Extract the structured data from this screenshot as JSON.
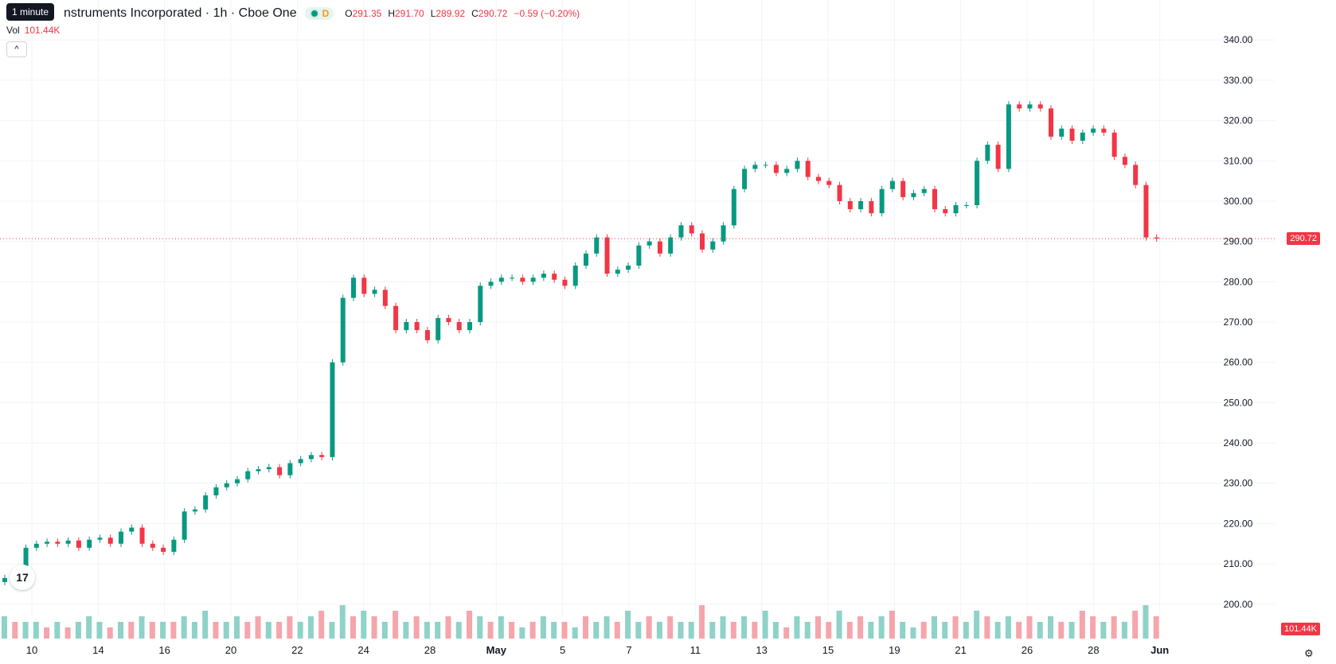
{
  "tooltip": "1 minute",
  "header": {
    "title": "nstruments Incorporated · 1h · Cboe One",
    "delay_flag": "D",
    "ohlc": {
      "o_label": "O",
      "o": "291.35",
      "h_label": "H",
      "h": "291.70",
      "l_label": "L",
      "l": "289.92",
      "c_label": "C",
      "c": "290.72",
      "change": "−0.59 (−0.20%)"
    }
  },
  "volume": {
    "label": "Vol",
    "value": "101.44K"
  },
  "price_tag": "290.72",
  "volume_tag": "101.44K",
  "logo": "17",
  "colors": {
    "up": "#089981",
    "down": "#f23645",
    "vol_up": "#8ed2c8",
    "vol_down": "#f5a5ab",
    "grid": "#f0f3fa"
  },
  "chart_data": {
    "type": "candlestick",
    "x_ticks": [
      "10",
      "14",
      "16",
      "20",
      "22",
      "24",
      "28",
      "May",
      "5",
      "7",
      "11",
      "13",
      "15",
      "19",
      "21",
      "26",
      "28",
      "Jun"
    ],
    "y_ticks": [
      "340.00",
      "330.00",
      "320.00",
      "310.00",
      "300.00",
      "290.00",
      "280.00",
      "270.00",
      "260.00",
      "250.00",
      "240.00",
      "230.00",
      "220.00",
      "210.00",
      "200.00"
    ],
    "ylim": [
      197,
      343
    ],
    "last_price": 290.72,
    "close_path": [
      206.5,
      207.5,
      214,
      215,
      215.5,
      215,
      215.8,
      214,
      216,
      216.5,
      215,
      218,
      219,
      215,
      214,
      213,
      216,
      223,
      223.5,
      227,
      229,
      230,
      231,
      233,
      233.5,
      234,
      232,
      235,
      236,
      237,
      236.5,
      260,
      276,
      281,
      277,
      278,
      274,
      268,
      270,
      268,
      265.5,
      271,
      270,
      268,
      270,
      279,
      280,
      281,
      281,
      280,
      281,
      282,
      280.5,
      279,
      284,
      287,
      291,
      282,
      283,
      284,
      289,
      290,
      287,
      291,
      294,
      292,
      288,
      290,
      294,
      303,
      308,
      309,
      309,
      307,
      308,
      310,
      306,
      305,
      304,
      300,
      298,
      300,
      297,
      303,
      305,
      301,
      302,
      303,
      298,
      297,
      299,
      299,
      310,
      314,
      308,
      324,
      323,
      324,
      323,
      316,
      318,
      315,
      317,
      318,
      317,
      311,
      309,
      304,
      291,
      290.72
    ],
    "volume_series": [
      [
        4,
        1
      ],
      [
        3,
        0
      ],
      [
        3,
        1
      ],
      [
        3,
        1
      ],
      [
        2,
        0
      ],
      [
        3,
        1
      ],
      [
        2,
        0
      ],
      [
        3,
        1
      ],
      [
        4,
        1
      ],
      [
        3,
        1
      ],
      [
        2,
        0
      ],
      [
        3,
        1
      ],
      [
        3,
        0
      ],
      [
        4,
        1
      ],
      [
        3,
        0
      ],
      [
        3,
        1
      ],
      [
        3,
        0
      ],
      [
        4,
        1
      ],
      [
        3,
        1
      ],
      [
        5,
        1
      ],
      [
        3,
        0
      ],
      [
        3,
        1
      ],
      [
        4,
        1
      ],
      [
        3,
        0
      ],
      [
        4,
        0
      ],
      [
        3,
        1
      ],
      [
        3,
        0
      ],
      [
        4,
        0
      ],
      [
        3,
        1
      ],
      [
        4,
        1
      ],
      [
        5,
        0
      ],
      [
        3,
        1
      ],
      [
        6,
        1
      ],
      [
        4,
        0
      ],
      [
        5,
        1
      ],
      [
        4,
        0
      ],
      [
        3,
        1
      ],
      [
        5,
        0
      ],
      [
        3,
        1
      ],
      [
        4,
        0
      ],
      [
        3,
        1
      ],
      [
        3,
        1
      ],
      [
        4,
        0
      ],
      [
        3,
        1
      ],
      [
        5,
        0
      ],
      [
        4,
        1
      ],
      [
        3,
        0
      ],
      [
        4,
        1
      ],
      [
        3,
        0
      ],
      [
        2,
        1
      ],
      [
        3,
        0
      ],
      [
        4,
        1
      ],
      [
        3,
        1
      ],
      [
        3,
        0
      ],
      [
        2,
        1
      ],
      [
        4,
        0
      ],
      [
        3,
        1
      ],
      [
        4,
        1
      ],
      [
        3,
        0
      ],
      [
        5,
        1
      ],
      [
        3,
        1
      ],
      [
        4,
        0
      ],
      [
        3,
        1
      ],
      [
        4,
        0
      ],
      [
        3,
        1
      ],
      [
        3,
        1
      ],
      [
        6,
        0
      ],
      [
        3,
        1
      ],
      [
        4,
        1
      ],
      [
        3,
        0
      ],
      [
        4,
        1
      ],
      [
        3,
        0
      ],
      [
        5,
        1
      ],
      [
        3,
        1
      ],
      [
        2,
        0
      ],
      [
        4,
        1
      ],
      [
        3,
        1
      ],
      [
        4,
        0
      ],
      [
        3,
        0
      ],
      [
        5,
        1
      ],
      [
        3,
        0
      ],
      [
        4,
        0
      ],
      [
        3,
        1
      ],
      [
        4,
        1
      ],
      [
        5,
        0
      ],
      [
        3,
        1
      ],
      [
        2,
        1
      ],
      [
        3,
        0
      ],
      [
        4,
        1
      ],
      [
        3,
        1
      ],
      [
        4,
        0
      ],
      [
        3,
        1
      ],
      [
        5,
        1
      ],
      [
        4,
        0
      ],
      [
        3,
        1
      ],
      [
        4,
        1
      ],
      [
        3,
        0
      ],
      [
        4,
        0
      ],
      [
        3,
        1
      ],
      [
        4,
        1
      ],
      [
        3,
        0
      ],
      [
        3,
        1
      ],
      [
        5,
        0
      ],
      [
        4,
        0
      ],
      [
        3,
        1
      ],
      [
        4,
        0
      ],
      [
        3,
        1
      ],
      [
        5,
        0
      ],
      [
        6,
        1
      ],
      [
        4,
        0
      ]
    ]
  }
}
